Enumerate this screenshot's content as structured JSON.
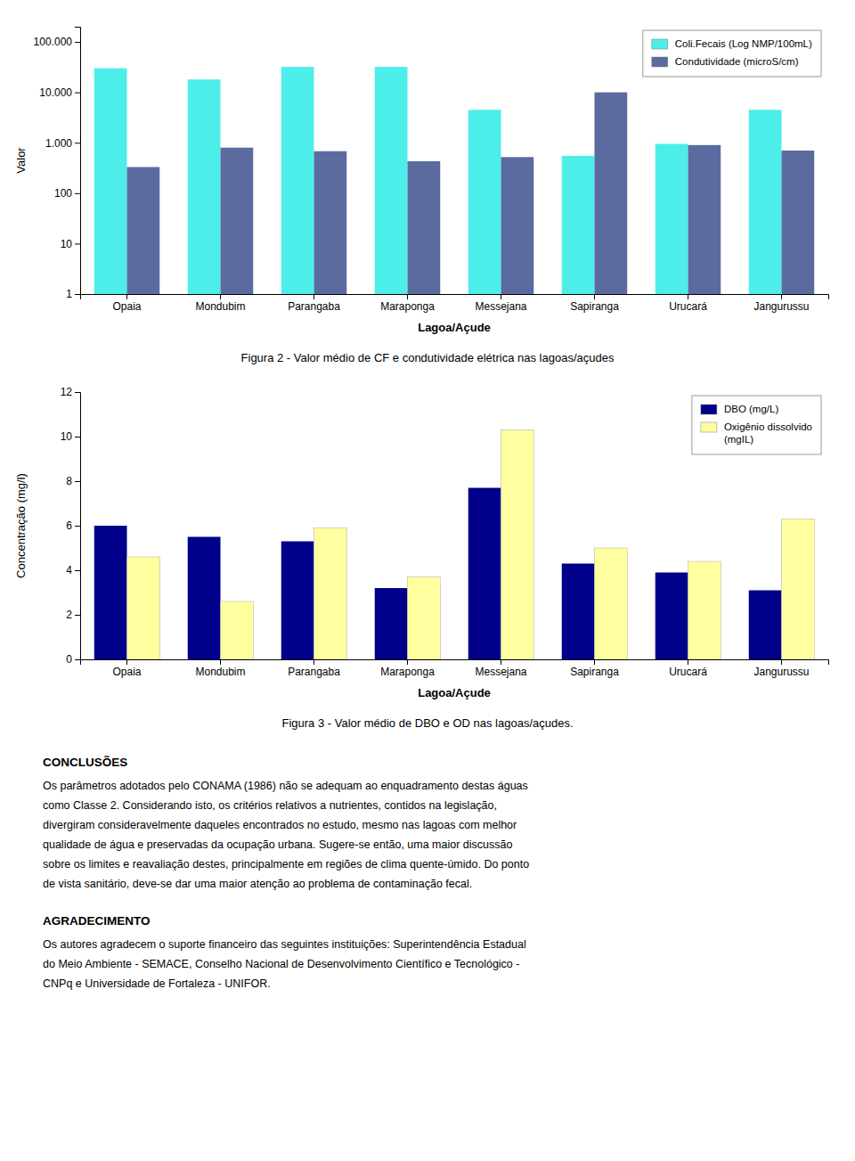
{
  "chart_data": [
    {
      "type": "bar",
      "categories": [
        "Opaia",
        "Mondubim",
        "Parangaba",
        "Maraponga",
        "Messejana",
        "Sapiranga",
        "Urucará",
        "Jangurussu"
      ],
      "series": [
        {
          "name": "Coli.Fecais (Log NMP/100mL)",
          "color": "#4DEEEA",
          "values": [
            30000,
            18000,
            32000,
            32000,
            4500,
            550,
            950,
            4500
          ]
        },
        {
          "name": "Condutividade (microS/cm)",
          "color": "#5B6BA0",
          "values": [
            330,
            800,
            680,
            430,
            520,
            10000,
            900,
            700
          ]
        }
      ],
      "y_label": "Valor",
      "x_label": "Lagoa/Açude",
      "log": "y",
      "ylim": [
        1,
        200000
      ],
      "yticks": [
        1,
        10,
        100,
        {
          "value": 1000,
          "label": "1.000"
        },
        {
          "value": 10000,
          "label": "10.000"
        },
        {
          "value": 100000,
          "label": "100.000"
        }
      ],
      "grid": false,
      "legend": "upper right",
      "caption": "Figura 2 - Valor médio de CF e condutividade elétrica nas lagoas/açudes"
    },
    {
      "type": "bar",
      "categories": [
        "Opaia",
        "Mondubim",
        "Parangaba",
        "Maraponga",
        "Messejana",
        "Sapiranga",
        "Urucará",
        "Jangurussu"
      ],
      "series": [
        {
          "name": "DBO (mg/L)",
          "color": "#00008B",
          "values": [
            6.0,
            5.5,
            5.3,
            3.2,
            7.7,
            4.3,
            3.9,
            3.1
          ]
        },
        {
          "name": "Oxigênio dissolvido\n(mgIL)",
          "color": "#FFFFA0",
          "values": [
            4.6,
            2.6,
            5.9,
            3.7,
            10.3,
            5.0,
            4.4,
            6.3
          ]
        }
      ],
      "y_label": "Concentração (mg/l)",
      "x_label": "Lagoa/Açude",
      "ylim": [
        0,
        12
      ],
      "yticks": [
        0,
        2,
        4,
        6,
        8,
        10,
        12
      ],
      "grid": false,
      "legend": "upper right",
      "caption": "Figura 3 - Valor médio de DBO e OD nas lagoas/açudes."
    }
  ],
  "sections": [
    {
      "title": "CONCLUSÕES",
      "lines": [
        "Os parâmetros adotados pelo CONAMA (1986) não se adequam ao enquadramento destas águas",
        "como Classe 2. Considerando isto, os critérios relativos a nutrientes, contidos na legislação,",
        "divergiram consideravelmente daqueles encontrados no estudo, mesmo nas lagoas com melhor",
        "qualidade de água e preservadas da ocupação urbana. Sugere-se então, uma maior discussão",
        "sobre os limites e reavaliação destes, principalmente em regiões de clima quente-úmido. Do ponto",
        "de vista sanitário, deve-se dar uma maior atenção ao problema de contaminação fecal."
      ]
    },
    {
      "title": "AGRADECIMENTO",
      "lines": [
        "Os autores agradecem o suporte financeiro das seguintes instituições: Superintendência Estadual",
        "do Meio Ambiente - SEMACE, Conselho Nacional de Desenvolvimento Científico e Tecnológico -",
        "CNPq e Universidade de Fortaleza - UNIFOR."
      ]
    }
  ]
}
